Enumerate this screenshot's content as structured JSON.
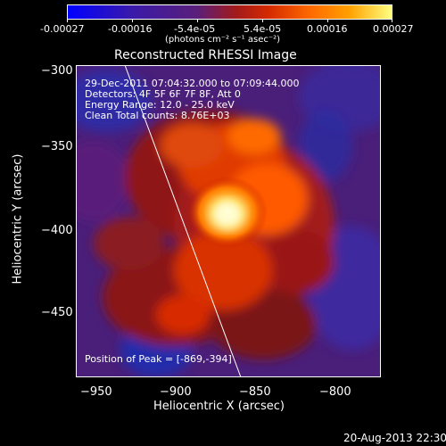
{
  "colorbar": {
    "tick_labels": [
      "-0.00027",
      "-0.00016",
      "-5.4e-05",
      "5.4e-05",
      "0.00016",
      "0.00027"
    ],
    "units": "(photons cm⁻² s⁻¹ asec⁻²)",
    "gradient": [
      "#0000ff",
      "#3a1aa8",
      "#5a1f7a",
      "#a31a1a",
      "#d42a00",
      "#ff6a00",
      "#ffa000",
      "#ffff80"
    ]
  },
  "plot": {
    "title": "Reconstructed RHESSI Image",
    "x_axis_label": "Heliocentric X (arcsec)",
    "y_axis_label": "Heliocentric Y (arcsec)",
    "x_ticks": [
      "−950",
      "−900",
      "−850",
      "−800"
    ],
    "y_ticks": [
      "−300",
      "−350",
      "−400",
      "−450"
    ],
    "info_lines": [
      "29-Dec-2011 07:04:32.000 to 07:09:44.000",
      "Detectors: 4F 5F 6F 7F 8F, Att 0",
      "Energy Range: 12.0 - 25.0 keV",
      "Clean    Total counts: 8.76E+03"
    ],
    "peak_label": "Position of Peak = [-869,-394]"
  },
  "footer": {
    "timestamp": "20-Aug-2013 22:30"
  }
}
